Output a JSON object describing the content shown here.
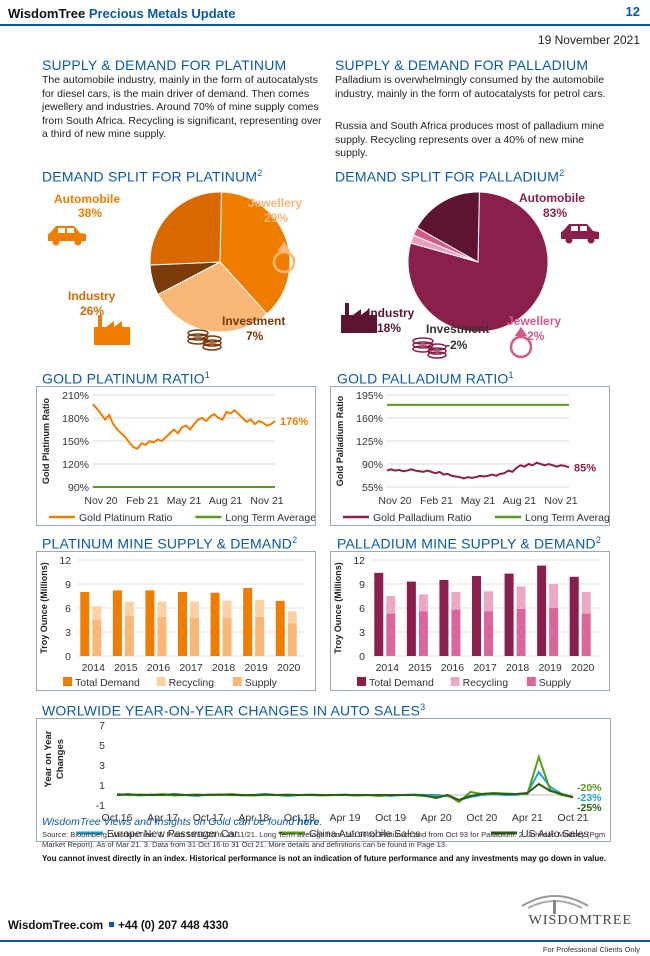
{
  "header": {
    "brand": "WisdomTree",
    "title": "Precious Metals Update",
    "page": "12",
    "date": "19 November 2021"
  },
  "platinum_intro": {
    "title": "SUPPLY & DEMAND FOR PLATINUM",
    "text": "The automobile industry, mainly in the form of autocatalysts for diesel cars, is the main driver of demand. Then comes jewellery and industries. Around 70% of mine supply comes from South Africa. Recycling is significant, representing over a third of new mine supply."
  },
  "palladium_intro": {
    "title": "SUPPLY & DEMAND FOR PALLADIUM",
    "text1": "Palladium is overwhelmingly consumed by the automobile industry, mainly in the form of autocatalysts for petrol cars.",
    "text2": "Russia and South Africa produces most of palladium mine supply. Recycling represents over a 40% of new mine supply."
  },
  "icons": [
    "car-icon",
    "ring-icon",
    "factory-icon",
    "coins-icon"
  ],
  "colors": {
    "blue": "#0a59a8",
    "orange": "#ef7d00",
    "maroon": "#8b1f4b",
    "green": "#5a9a1a",
    "cyan": "#1fa6d8",
    "darkgreen": "#2e5e12"
  },
  "chart_data": [
    {
      "type": "pie",
      "title": "DEMAND SPLIT FOR PLATINUM",
      "title_sup": "2",
      "slices": [
        {
          "name": "Automobile",
          "value": 38,
          "label": "38%",
          "color": "#ef7d00"
        },
        {
          "name": "Jewellery",
          "value": 29,
          "label": "29%",
          "color": "#f9b778"
        },
        {
          "name": "Investment",
          "value": 7,
          "label": "7%",
          "color": "#7a3a0a"
        },
        {
          "name": "Industry",
          "value": 26,
          "label": "26%",
          "color": "#d96800"
        }
      ]
    },
    {
      "type": "pie",
      "title": "DEMAND SPLIT FOR PALLADIUM",
      "title_sup": "2",
      "slices": [
        {
          "name": "Automobile",
          "value": 83,
          "label": "83%",
          "color": "#8b1f4b"
        },
        {
          "name": "Jewellery",
          "value": 2,
          "label": "2%",
          "color": "#e8a0bd"
        },
        {
          "name": "Investment",
          "value": -2,
          "label": "-2%",
          "color": "#d45a8a"
        },
        {
          "name": "Industry",
          "value": 18,
          "label": "18%",
          "color": "#5c1430"
        }
      ]
    },
    {
      "type": "line",
      "title": "GOLD PLATINUM RATIO",
      "title_sup": "1",
      "ylabel": "Gold Platinum Ratio",
      "yticks": [
        "210%",
        "180%",
        "150%",
        "120%",
        "90%"
      ],
      "ylim": [
        90,
        210
      ],
      "xticks": [
        "Nov 20",
        "Feb 21",
        "May 21",
        "Aug 21",
        "Nov 21"
      ],
      "end_label": "176%",
      "series": [
        {
          "name": "Gold Platinum Ratio",
          "color": "#ef7d00",
          "values": [
            198,
            192,
            185,
            178,
            184,
            172,
            165,
            160,
            155,
            148,
            142,
            140,
            147,
            145,
            150,
            148,
            152,
            150,
            155,
            160,
            165,
            160,
            168,
            170,
            165,
            172,
            178,
            180,
            176,
            182,
            185,
            180,
            178,
            188,
            186,
            190,
            185,
            180,
            175,
            178,
            172,
            176,
            174,
            170,
            172,
            176
          ]
        },
        {
          "name": "Long Term Average",
          "color": "#5a9a1a",
          "values": [
            90,
            90
          ]
        }
      ]
    },
    {
      "type": "line",
      "title": "GOLD PALLADIUM RATIO",
      "title_sup": "1",
      "ylabel": "Gold Palladium Ratio",
      "yticks": [
        "195%",
        "160%",
        "125%",
        "90%",
        "55%"
      ],
      "ylim": [
        55,
        195
      ],
      "xticks": [
        "Nov 20",
        "Feb 21",
        "May 21",
        "Aug 21",
        "Nov 21"
      ],
      "end_label": "85%",
      "series": [
        {
          "name": "Gold Palladium Ratio",
          "color": "#8b1f4b",
          "values": [
            80,
            82,
            80,
            81,
            79,
            80,
            82,
            80,
            79,
            78,
            80,
            78,
            76,
            78,
            74,
            75,
            72,
            71,
            70,
            68,
            70,
            69,
            70,
            72,
            71,
            72,
            74,
            72,
            75,
            76,
            80,
            78,
            84,
            88,
            86,
            90,
            88,
            92,
            90,
            88,
            90,
            88,
            86,
            88,
            87,
            85
          ]
        },
        {
          "name": "Long Term Average",
          "color": "#5a9a1a",
          "values": [
            180,
            180
          ]
        }
      ]
    },
    {
      "type": "bar",
      "title": "PLATINUM MINE SUPPLY & DEMAND",
      "title_sup": "2",
      "ylabel": "Troy Ounce (Millions)",
      "ylim": [
        0,
        12
      ],
      "yticks": [
        "12",
        "9",
        "6",
        "3",
        "0"
      ],
      "categories": [
        "2014",
        "2015",
        "2016",
        "2017",
        "2018",
        "2019",
        "2020"
      ],
      "series": [
        {
          "name": "Total Demand",
          "color": "#ef7d00",
          "values": [
            8.0,
            8.2,
            8.2,
            8.0,
            7.9,
            8.5,
            6.9
          ]
        },
        {
          "name": "Recycling",
          "color": "#fbd2a6",
          "values": [
            1.7,
            1.8,
            1.9,
            2.0,
            2.1,
            2.1,
            1.5
          ]
        },
        {
          "name": "Supply",
          "color": "#f9b778",
          "values": [
            4.5,
            5.0,
            4.9,
            4.8,
            4.8,
            4.9,
            4.1
          ]
        }
      ]
    },
    {
      "type": "bar",
      "title": "PALLADIUM MINE SUPPLY & DEMAND",
      "title_sup": "2",
      "ylabel": "Troy Ounce (Millions)",
      "ylim": [
        0,
        12
      ],
      "yticks": [
        "12",
        "9",
        "6",
        "3",
        "0"
      ],
      "categories": [
        "2014",
        "2015",
        "2016",
        "2017",
        "2018",
        "2019",
        "2020"
      ],
      "series": [
        {
          "name": "Total Demand",
          "color": "#8b1f4b",
          "values": [
            10.4,
            9.3,
            9.5,
            10.0,
            10.3,
            11.3,
            9.9
          ]
        },
        {
          "name": "Recycling",
          "color": "#eaa9c4",
          "values": [
            2.2,
            2.1,
            2.2,
            2.5,
            2.8,
            3.0,
            2.7
          ]
        },
        {
          "name": "Supply",
          "color": "#d9679a",
          "values": [
            5.3,
            5.6,
            5.8,
            5.6,
            5.9,
            6.0,
            5.3
          ]
        }
      ]
    },
    {
      "type": "line",
      "title": "WORLWIDE YEAR-ON-YEAR CHANGES IN AUTO SALES",
      "title_sup": "3",
      "ylabel": "Year on Year Changes",
      "ylim": [
        -2,
        7
      ],
      "yticks": [
        "7",
        "5",
        "3",
        "1",
        "-1"
      ],
      "xticks": [
        "Oct 16",
        "Apr 17",
        "Oct 17",
        "Apr 18",
        "Oct 18",
        "Apr 19",
        "Oct 19",
        "Apr 20",
        "Oct 20",
        "Apr 21",
        "Oct 21"
      ],
      "end_labels": [
        {
          "text": "-20%",
          "color": "#5a9a1a"
        },
        {
          "text": "-23%",
          "color": "#1fa6d8"
        },
        {
          "text": "-25%",
          "color": "#2e5e12"
        }
      ],
      "series": [
        {
          "name": "Europe New Passenger Car",
          "color": "#1fa6d8",
          "values": [
            0,
            0.1,
            -0.05,
            0.05,
            0,
            0.1,
            0,
            -0.1,
            0.05,
            0,
            0.05,
            -0.05,
            0,
            0.1,
            0,
            -0.1,
            0,
            0.05,
            0,
            0,
            0.05,
            -0.05,
            0,
            0,
            -0.1,
            0,
            0.05,
            0,
            0,
            -0.1,
            -0.5,
            -0.2,
            0,
            0.1,
            0,
            0,
            0.2,
            2.3,
            0.8,
            0.1,
            -0.2
          ]
        },
        {
          "name": "China Automobile Sales",
          "color": "#5a9a1a",
          "values": [
            0.1,
            0,
            0.05,
            0,
            0.1,
            -0.05,
            0,
            0.05,
            0,
            0,
            0.1,
            0,
            -0.05,
            0,
            0,
            0.05,
            0,
            0,
            -0.05,
            0,
            0,
            -0.05,
            0,
            -0.1,
            0,
            0,
            0,
            -0.1,
            -0.2,
            0,
            -0.7,
            0.3,
            0.1,
            0.2,
            0.15,
            0.1,
            0.1,
            3.8,
            0.5,
            0,
            -0.2
          ]
        },
        {
          "name": "US Auto Sales",
          "color": "#2e5e12",
          "values": [
            0,
            0.05,
            0,
            0,
            0,
            0.05,
            0,
            0,
            0,
            0.05,
            0,
            0,
            0,
            0.05,
            0,
            0,
            0,
            0,
            0,
            0,
            0,
            0,
            0,
            0,
            0,
            0,
            0,
            -0.05,
            -0.3,
            0,
            -0.5,
            -0.1,
            0.1,
            0.15,
            0.1,
            0.1,
            0.2,
            1.1,
            0.4,
            0.1,
            -0.25
          ]
        }
      ]
    }
  ],
  "footer": {
    "views_text": "WisdomTree Views and Insights on Gold can be found",
    "views_link": "here",
    "views_end": ".",
    "source": "Source: Bloomberg, WisdomTree. 1. From 19/11/20 to 19/11/21. Long Term average from Jan 90 for Platitnum and from Oct 93 for Palladium. 2. Johnson Matthey (Pgm Market Report). As of Mar 21. 3. Data from 31 Oct 16 to 31 Oct 21. More details and definitions can be found in Page 13.",
    "disclaimer": "You cannot invest directly in an index. Historical performance is not an indication of future performance and any investments may go down in value.",
    "website": "WisdomTree.com",
    "phone": "+44 (0) 207 448 4330",
    "logo": "WISDOMTREE",
    "professional": "For Professional Clients Only"
  }
}
